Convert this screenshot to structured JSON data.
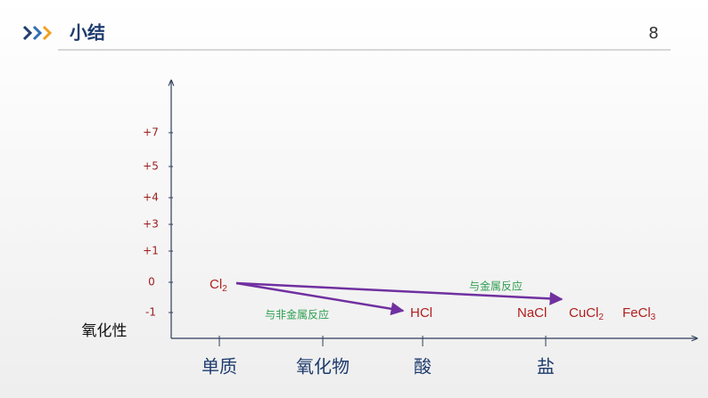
{
  "header": {
    "title": "小结",
    "page": "8"
  },
  "y_axis": {
    "label": "氧化性",
    "ticks": [
      "+7",
      "+5",
      "+4",
      "+3",
      "+1",
      "0",
      "-1"
    ]
  },
  "x_axis": {
    "categories": [
      "单质",
      "氧化物",
      "酸",
      "盐"
    ]
  },
  "species": [
    {
      "text": "Cl",
      "sub": "2"
    },
    {
      "text": "HCl"
    },
    {
      "text": "NaCl"
    },
    {
      "text": "CuCl",
      "sub": "2"
    },
    {
      "text": "FeCl",
      "sub": "3"
    }
  ],
  "arrows": [
    {
      "label": "与非金属反应"
    },
    {
      "label": "与金属反应"
    }
  ]
}
